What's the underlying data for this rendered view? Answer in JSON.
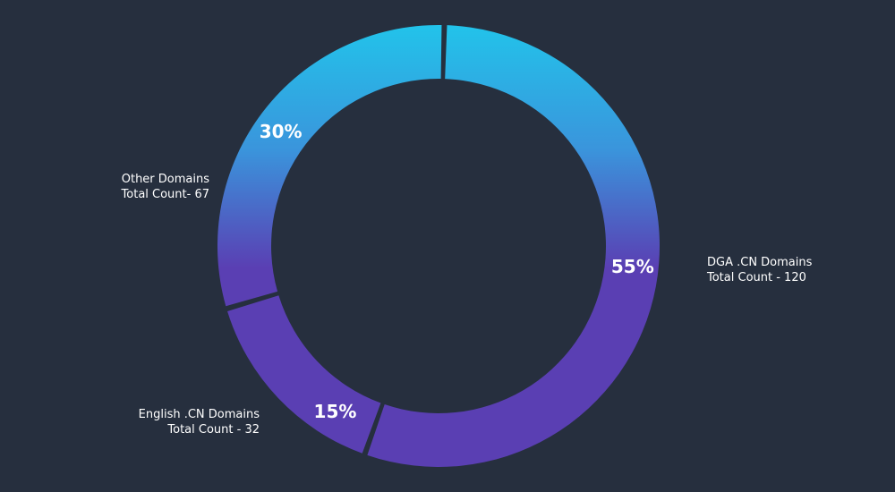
{
  "chart_data": {
    "type": "pie",
    "variant": "donut",
    "legend": "callout labels beside segments",
    "slices": [
      {
        "name": "DGA .CN Domains",
        "count_label": "Total Count - 120",
        "percent": 55,
        "percent_label": "55%"
      },
      {
        "name": "English .CN Domains",
        "count_label": "Total Count - 32",
        "percent": 15,
        "percent_label": "15%"
      },
      {
        "name": "Other Domains",
        "count_label": "Total Count- 67",
        "percent": 30,
        "percent_label": "30%"
      }
    ],
    "colors": {
      "background": "#262f3e",
      "gradient_top": "#22c3ea",
      "gradient_mid": "#4a7cd6",
      "gradient_bottom": "#5a3fb3"
    }
  }
}
